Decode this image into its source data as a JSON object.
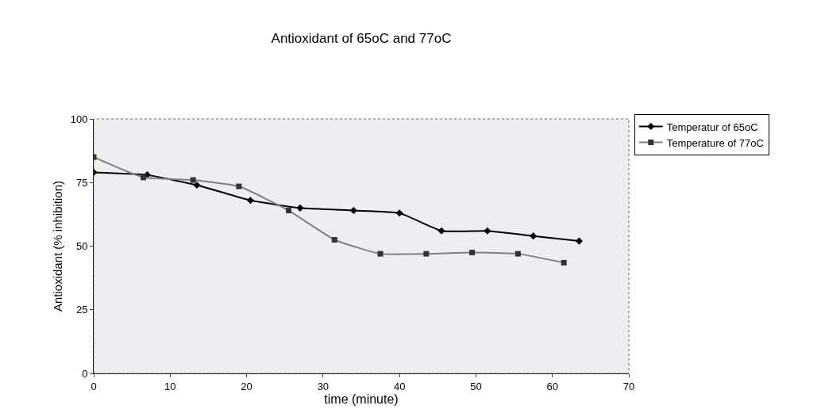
{
  "chart_data": {
    "type": "line",
    "title": "Antioxidant of 65oC and 77oC",
    "xlabel": "time (minute)",
    "ylabel": "Antioxidant (% inhibition)",
    "xlim": [
      0,
      70
    ],
    "xticks": [
      0,
      10,
      20,
      30,
      40,
      50,
      60,
      70
    ],
    "ylim": [
      0,
      100
    ],
    "yticks": [
      0,
      25,
      50,
      75,
      100
    ],
    "grid": false,
    "legend": "top right",
    "line_style": "solid",
    "series": [
      {
        "name": "Temperatur of 65oC",
        "color": "#000000",
        "marker": "diamond",
        "x": [
          0,
          7,
          13.5,
          20.5,
          27,
          34,
          40,
          45.5,
          51.5,
          57.5,
          63.5
        ],
        "values": [
          79,
          78,
          74,
          68,
          65,
          64,
          63,
          56,
          56,
          54,
          52
        ]
      },
      {
        "name": "Temperature of 77oC",
        "color": "#808080",
        "marker": "square",
        "x": [
          0,
          6.5,
          13,
          19,
          25.5,
          31.5,
          37.5,
          43.5,
          49.5,
          55.5,
          61.5
        ],
        "values": [
          85,
          77,
          76,
          73.5,
          64,
          52.5,
          47,
          47,
          47.5,
          47,
          43.5
        ]
      }
    ]
  }
}
